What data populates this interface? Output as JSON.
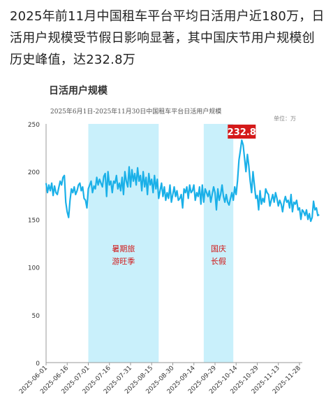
{
  "headline": "2025年前11月中国租车平台平均日活用户近180万，日活用户规模受节假日影响显著，其中国庆节用户规模创历史峰值，达232.8万",
  "chart_data": {
    "type": "line",
    "title": "日活用户规模",
    "subtitle": "2025年6月1日-2025年11月30日中国租车平台日活用户规模",
    "unit": "单位：万",
    "ylim": [
      0,
      250
    ],
    "yticks": [
      0,
      50,
      100,
      150,
      200,
      250
    ],
    "x_start": "2025-06-01",
    "x_end": "2025-11-30",
    "xticks": [
      "2025-06-01",
      "2025-06-16",
      "2025-07-01",
      "2025-07-16",
      "2025-07-31",
      "2025-08-15",
      "2025-08-30",
      "2025-09-14",
      "2025-09-29",
      "2025-10-14",
      "2025-10-29",
      "2025-11-13",
      "2025-11-28"
    ],
    "series": [
      {
        "color": "#1ab0e8",
        "values": [
          188,
          178,
          186,
          180,
          188,
          175,
          185,
          178,
          176,
          183,
          190,
          186,
          194,
          196,
          168,
          158,
          152,
          170,
          182,
          178,
          184,
          176,
          180,
          186,
          188,
          180,
          184,
          172,
          170,
          162,
          182,
          186,
          190,
          178,
          185,
          182,
          194,
          186,
          192,
          188,
          184,
          195,
          198,
          174,
          200,
          186,
          190,
          178,
          190,
          188,
          196,
          182,
          188,
          180,
          194,
          176,
          200,
          190,
          184,
          205,
          184,
          202,
          190,
          198,
          186,
          204,
          190,
          196,
          180,
          200,
          184,
          194,
          176,
          198,
          186,
          192,
          178,
          196,
          182,
          192,
          172,
          180,
          188,
          174,
          184,
          170,
          178,
          172,
          186,
          168,
          176,
          184,
          174,
          180,
          170,
          172,
          176,
          162,
          182,
          178,
          184,
          172,
          186,
          178,
          180,
          186,
          170,
          178,
          174,
          184,
          166,
          186,
          168,
          182,
          178,
          174,
          180,
          168,
          176,
          184,
          178,
          160,
          182,
          170,
          176,
          186,
          174,
          168,
          176,
          168,
          165,
          172,
          178,
          170,
          184,
          176,
          190,
          212,
          222,
          233,
          228,
          214,
          200,
          218,
          206,
          190,
          178,
          200,
          186,
          172,
          175,
          160,
          180,
          166,
          172,
          168,
          182,
          178,
          176,
          164,
          170,
          176,
          168,
          178,
          172,
          164,
          170,
          166,
          158,
          168,
          174,
          168,
          170,
          162,
          176,
          158,
          168,
          166,
          170,
          160,
          162,
          150,
          160,
          158,
          154,
          160,
          150,
          156,
          148,
          152,
          169,
          160,
          162,
          154,
          155
        ],
        "peak_label": "232.8"
      }
    ],
    "bands": [
      {
        "label_line1": "暑期旅",
        "label_line2": "游旺季",
        "start": "2025-07-01",
        "end": "2025-08-20",
        "color": "#c9f0fb"
      },
      {
        "label_line1": "国庆",
        "label_line2": "长假",
        "start": "2025-09-21",
        "end": "2025-10-12",
        "color": "#c9f0fb"
      }
    ]
  }
}
